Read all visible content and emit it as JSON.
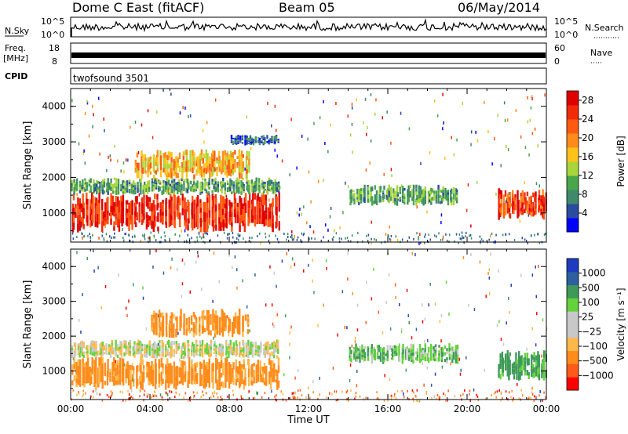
{
  "header": {
    "title": "Dome C East (fitACF)",
    "beam": "Beam 05",
    "date": "06/May/2014"
  },
  "strips": {
    "sky_label": "N.Sky",
    "sky_ticks": [
      "10^5",
      "10^0"
    ],
    "search_label": "N.Search",
    "search_ticks": [
      "10^5",
      "10^0"
    ],
    "freq_label": "Freq.",
    "freq_unit": "[MHz]",
    "freq_ticks": [
      "18",
      "8"
    ],
    "nave_label": "Nave",
    "nave_ticks": [
      "60",
      "0"
    ],
    "cpid_label": "CPID",
    "cpid_value": "twofsound 3501"
  },
  "colors": {
    "power_scale": [
      "#0000ff",
      "#2a4ca0",
      "#3f8a6a",
      "#4aa64a",
      "#a8d63a",
      "#ffc21a",
      "#ff8c1a",
      "#ff5a0f",
      "#f22a0a",
      "#e00000"
    ],
    "velocity_scale": [
      "#ff0000",
      "#ff5a1a",
      "#ff8c1a",
      "#ffb84a",
      "#c8c8c8",
      "#c8c8c8",
      "#63d23b",
      "#3f9a5a",
      "#2e5f9e",
      "#1f3cbf"
    ]
  },
  "chart_data": [
    {
      "type": "heatmap",
      "name": "Power",
      "xlabel": "",
      "ylabel": "Slant Range [km]",
      "xlim": [
        "00:00",
        "24:00"
      ],
      "ylim": [
        180,
        4500
      ],
      "x_ticks": [
        "00:00",
        "04:00",
        "08:00",
        "12:00",
        "16:00",
        "20:00",
        "00:00"
      ],
      "y_ticks": [
        1000,
        2000,
        3000,
        4000
      ],
      "colorbar_label": "Power [dB]",
      "colorbar_ticks": [
        4,
        8,
        12,
        16,
        20,
        24,
        28
      ],
      "colorbar_range": [
        0,
        30
      ],
      "regions": [
        {
          "t_start": 0.0,
          "t_end": 10.5,
          "range_low": 450,
          "range_high": 1600,
          "value": 26
        },
        {
          "t_start": 0.0,
          "t_end": 10.5,
          "range_low": 1500,
          "range_high": 2000,
          "value": 10
        },
        {
          "t_start": 3.2,
          "t_end": 9.0,
          "range_low": 1950,
          "range_high": 2800,
          "value": 18
        },
        {
          "t_start": 8.0,
          "t_end": 10.5,
          "range_low": 2900,
          "range_high": 3200,
          "value": 6
        },
        {
          "t_start": 14.0,
          "t_end": 19.5,
          "range_low": 1200,
          "range_high": 1800,
          "value": 10
        },
        {
          "t_start": 21.5,
          "t_end": 24.0,
          "range_low": 800,
          "range_high": 1700,
          "value": 24
        }
      ]
    },
    {
      "type": "heatmap",
      "name": "Velocity",
      "xlabel": "Time UT",
      "ylabel": "Slant Range [km]",
      "xlim": [
        "00:00",
        "24:00"
      ],
      "ylim": [
        180,
        4500
      ],
      "x_ticks": [
        "00:00",
        "04:00",
        "08:00",
        "12:00",
        "16:00",
        "20:00",
        "00:00"
      ],
      "y_ticks": [
        1000,
        2000,
        3000,
        4000
      ],
      "colorbar_label": "Velocity [m s⁻¹]",
      "colorbar_ticks": [
        1000,
        500,
        100,
        25,
        -25,
        -100,
        -500,
        -1000
      ],
      "regions": [
        {
          "t_start": 0.0,
          "t_end": 10.5,
          "range_low": 450,
          "range_high": 1400,
          "value": -150
        },
        {
          "t_start": 0.0,
          "t_end": 10.5,
          "range_low": 1350,
          "range_high": 1900,
          "value": 0
        },
        {
          "t_start": 4.0,
          "t_end": 9.0,
          "range_low": 1950,
          "range_high": 2800,
          "value": -150
        },
        {
          "t_start": 14.0,
          "t_end": 19.5,
          "range_low": 1200,
          "range_high": 1800,
          "value": 80
        },
        {
          "t_start": 21.5,
          "t_end": 24.0,
          "range_low": 700,
          "range_high": 1600,
          "value": 150
        }
      ]
    }
  ]
}
